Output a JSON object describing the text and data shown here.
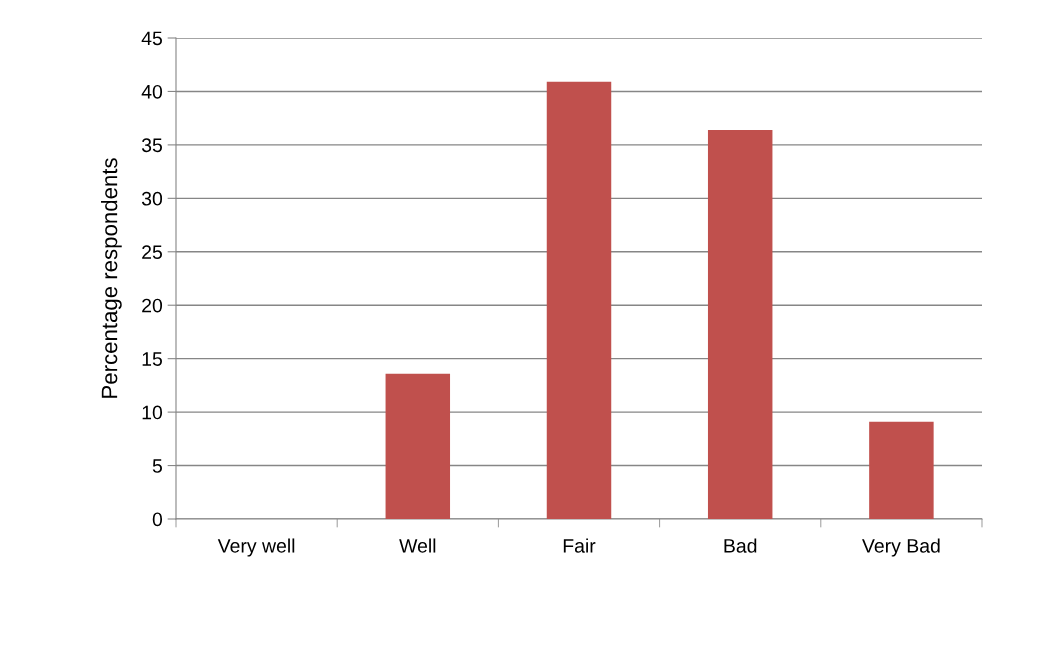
{
  "chart_data": {
    "type": "bar",
    "ylabel": "Percentage respondents",
    "categories": [
      "Very well",
      "Well",
      "Fair",
      "Bad",
      "Very Bad"
    ],
    "values": [
      0,
      13.6,
      40.9,
      36.4,
      9.1
    ],
    "color": "#c0504d",
    "ylim": [
      0,
      45
    ],
    "yticks": [
      0,
      5,
      10,
      15,
      20,
      25,
      30,
      35,
      40,
      45
    ],
    "grid": "y"
  }
}
